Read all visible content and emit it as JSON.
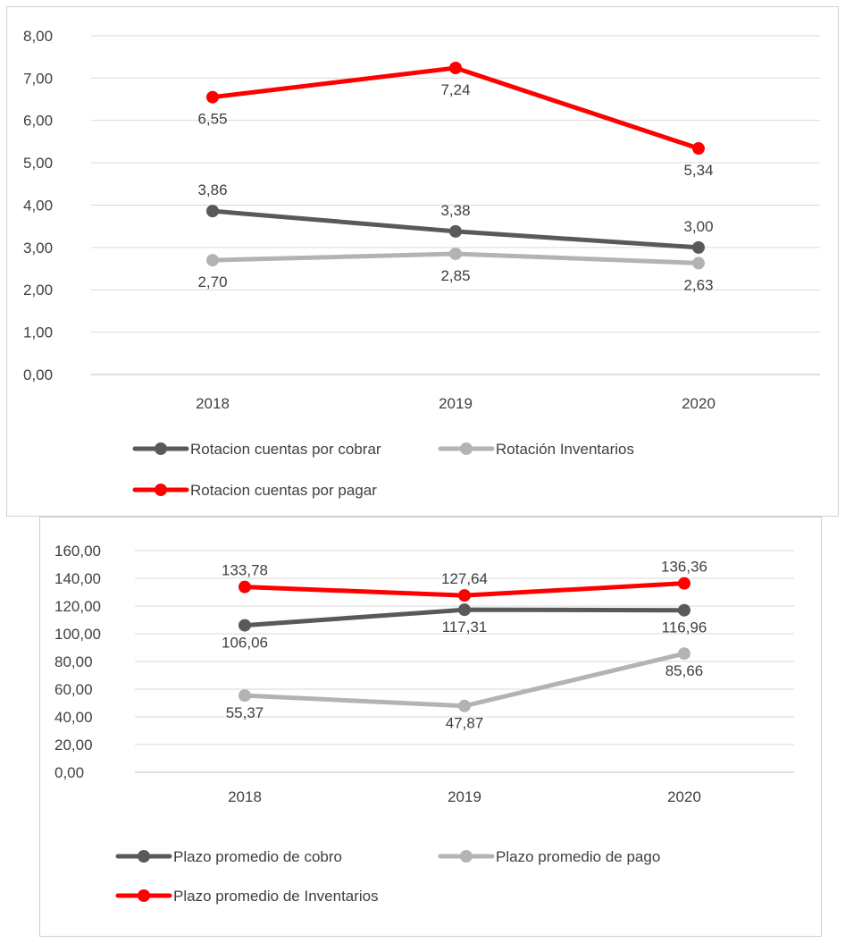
{
  "chart_data": [
    {
      "type": "line",
      "categories": [
        "2018",
        "2019",
        "2020"
      ],
      "ylim": [
        0,
        8
      ],
      "ytick_step": 1,
      "ytick_labels": [
        "0,00",
        "1,00",
        "2,00",
        "3,00",
        "4,00",
        "5,00",
        "6,00",
        "7,00",
        "8,00"
      ],
      "grid": true,
      "legend_position": "bottom",
      "series": [
        {
          "name": "Rotacion cuentas por cobrar",
          "values": [
            3.86,
            3.38,
            3.0
          ],
          "labels": [
            "3,86",
            "3,38",
            "3,00"
          ],
          "label_pos": "above",
          "color": "#595959"
        },
        {
          "name": "Rotación Inventarios",
          "values": [
            2.7,
            2.85,
            2.63
          ],
          "labels": [
            "2,70",
            "2,85",
            "2,63"
          ],
          "label_pos": "below",
          "color": "#b3b3b3"
        },
        {
          "name": "Rotacion cuentas por pagar",
          "values": [
            6.55,
            7.24,
            5.34
          ],
          "labels": [
            "6,55",
            "7,24",
            "5,34"
          ],
          "label_pos": "below",
          "color": "#ff0000"
        }
      ]
    },
    {
      "type": "line",
      "categories": [
        "2018",
        "2019",
        "2020"
      ],
      "ylim": [
        0,
        160
      ],
      "ytick_step": 20,
      "ytick_labels": [
        "0,00",
        "20,00",
        "40,00",
        "60,00",
        "80,00",
        "100,00",
        "120,00",
        "140,00",
        "160,00"
      ],
      "grid": true,
      "legend_position": "bottom",
      "series": [
        {
          "name": "Plazo promedio de cobro",
          "values": [
            106.06,
            117.31,
            116.96
          ],
          "labels": [
            "106,06",
            "117,31",
            "116,96"
          ],
          "label_pos": "below",
          "color": "#595959"
        },
        {
          "name": "Plazo promedio de pago",
          "values": [
            55.37,
            47.87,
            85.66
          ],
          "labels": [
            "55,37",
            "47,87",
            "85,66"
          ],
          "label_pos": "below",
          "color": "#b3b3b3"
        },
        {
          "name": "Plazo promedio de Inventarios",
          "values": [
            133.78,
            127.64,
            136.36
          ],
          "labels": [
            "133,78",
            "127,64",
            "136,36"
          ],
          "label_pos": "above",
          "color": "#ff0000"
        }
      ]
    }
  ]
}
